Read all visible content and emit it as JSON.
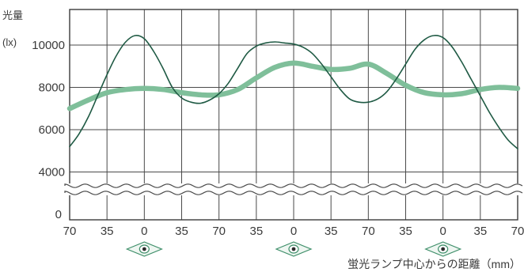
{
  "chart_data": {
    "type": "line",
    "title": "",
    "ylabel": "光量",
    "ylabel_unit": "(lx)",
    "xlabel": "蛍光ランプ中心からの距離（mm）",
    "x_tick_labels": [
      "70",
      "35",
      "0",
      "35",
      "70",
      "35",
      "0",
      "35",
      "70",
      "35",
      "0",
      "35",
      "70"
    ],
    "y_tick_labels": [
      "0",
      "4000",
      "6000",
      "8000",
      "10000"
    ],
    "y_ticks": [
      4000,
      6000,
      8000,
      10000
    ],
    "y_zero_label": "0",
    "ylim": [
      3000,
      11500
    ],
    "y_axis_break": true,
    "grid": true,
    "lamp_positions": [
      2,
      6,
      10
    ],
    "series": [
      {
        "name": "",
        "style": "thin",
        "color": "#1f5a44",
        "x": [
          0,
          0.25,
          0.5,
          0.75,
          1,
          1.25,
          1.5,
          1.75,
          2,
          2.25,
          2.5,
          2.75,
          3,
          3.25,
          3.5,
          3.75,
          4,
          4.25,
          4.5,
          4.75,
          5,
          5.25,
          5.5,
          5.75,
          6,
          6.25,
          6.5,
          6.75,
          7,
          7.25,
          7.5,
          7.75,
          8,
          8.25,
          8.5,
          8.75,
          9,
          9.25,
          9.5,
          9.75,
          10,
          10.25,
          10.5,
          10.75,
          11,
          11.25,
          11.5,
          11.75,
          12
        ],
        "values": [
          5200,
          5800,
          6600,
          7600,
          8600,
          9500,
          10150,
          10450,
          10300,
          9700,
          8900,
          8000,
          7500,
          7300,
          7250,
          7400,
          7700,
          8200,
          8900,
          9600,
          9950,
          10100,
          10150,
          10100,
          10050,
          9900,
          9600,
          9100,
          8500,
          7900,
          7450,
          7300,
          7300,
          7450,
          7800,
          8400,
          9100,
          9800,
          10250,
          10450,
          10350,
          9900,
          9200,
          8400,
          7600,
          6800,
          6100,
          5500,
          5100
        ]
      },
      {
        "name": "",
        "style": "thick",
        "color": "#7fbf9a",
        "x": [
          0,
          0.5,
          1,
          1.5,
          2,
          2.5,
          3,
          3.5,
          4,
          4.5,
          5,
          5.5,
          6,
          6.5,
          7,
          7.5,
          8,
          8.5,
          9,
          9.5,
          10,
          10.5,
          11,
          11.5,
          12
        ],
        "values": [
          7000,
          7400,
          7750,
          7900,
          7950,
          7900,
          7750,
          7650,
          7650,
          7900,
          8450,
          8950,
          9150,
          9000,
          8850,
          8900,
          9100,
          8650,
          8100,
          7750,
          7650,
          7700,
          7900,
          8000,
          7950
        ]
      }
    ]
  }
}
